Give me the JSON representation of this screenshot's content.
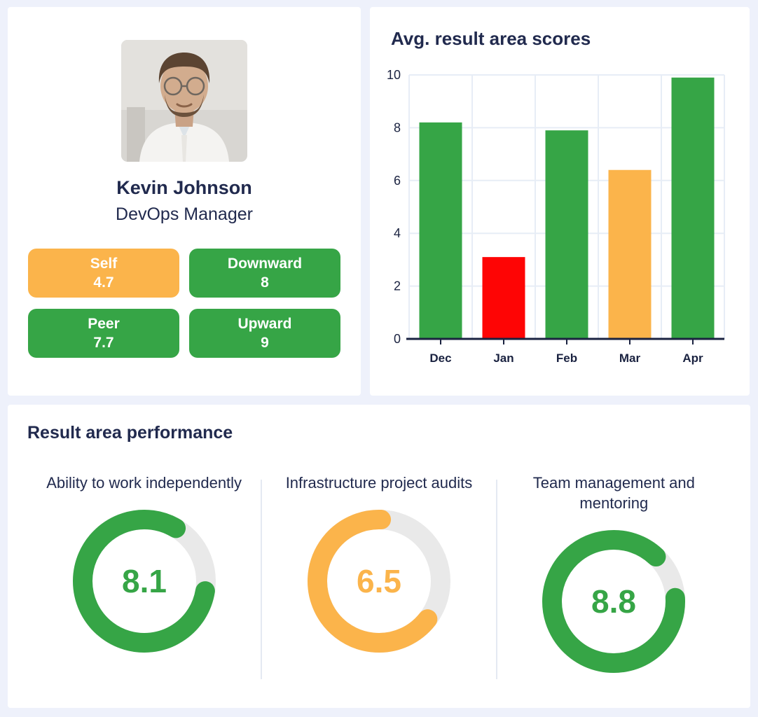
{
  "colors": {
    "green": "#36A546",
    "orange": "#FBB44B",
    "red": "#FE0505",
    "navy": "#212A4E",
    "axis": "#1A2240",
    "grid": "#E7EDF6",
    "track": "#E9E9E9",
    "card_bg": "#FFFFFF",
    "page_bg": "#EEF1FB"
  },
  "profile": {
    "name": "Kevin Johnson",
    "role": "DevOps Manager",
    "photo": "portrait-of-man-avatar",
    "badges": [
      {
        "label": "Self",
        "value": "4.7",
        "color": "#FBB44B"
      },
      {
        "label": "Downward",
        "value": "8",
        "color": "#36A546"
      },
      {
        "label": "Peer",
        "value": "7.7",
        "color": "#36A546"
      },
      {
        "label": "Upward",
        "value": "9",
        "color": "#36A546"
      }
    ]
  },
  "chart_data": {
    "type": "bar",
    "title": "Avg. result area scores",
    "categories": [
      "Dec",
      "Jan",
      "Feb",
      "Mar",
      "Apr"
    ],
    "values": [
      8.2,
      3.1,
      7.9,
      6.4,
      9.9
    ],
    "bar_colors": [
      "#36A546",
      "#FE0505",
      "#36A546",
      "#FBB44B",
      "#36A546"
    ],
    "xlabel": "",
    "ylabel": "",
    "ylim": [
      0,
      10
    ],
    "yticks": [
      0,
      2,
      4,
      6,
      8,
      10
    ],
    "grid": true,
    "legend": "none"
  },
  "performance": {
    "title": "Result area performance",
    "max": 10,
    "gauges": [
      {
        "label": "Ability to work independently",
        "value": 8.1,
        "display": "8.1",
        "color": "#36A546"
      },
      {
        "label": "Infrastructure project audits",
        "value": 6.5,
        "display": "6.5",
        "color": "#FBB44B"
      },
      {
        "label": "Team management and mentoring",
        "value": 8.8,
        "display": "8.8",
        "color": "#36A546"
      }
    ]
  }
}
